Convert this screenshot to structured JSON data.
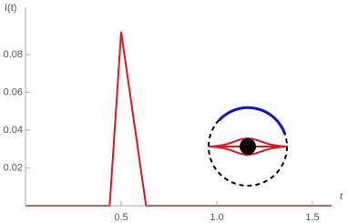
{
  "chart_data": {
    "type": "line",
    "y_label": "I(t)",
    "x_label": "t",
    "x": [
      0,
      0.44,
      0.5,
      0.63,
      1.6
    ],
    "series": [
      {
        "color": "#e8141d",
        "values": [
          0,
          0,
          0.092,
          0,
          0
        ]
      }
    ],
    "xlim": [
      0,
      1.6
    ],
    "ylim": [
      0,
      0.105
    ],
    "xticks": [
      0.5,
      {
        "value": 1,
        "label": "1.0"
      },
      1.5
    ],
    "yticks": [
      0.02,
      0.04,
      0.06,
      0.08
    ]
  }
}
